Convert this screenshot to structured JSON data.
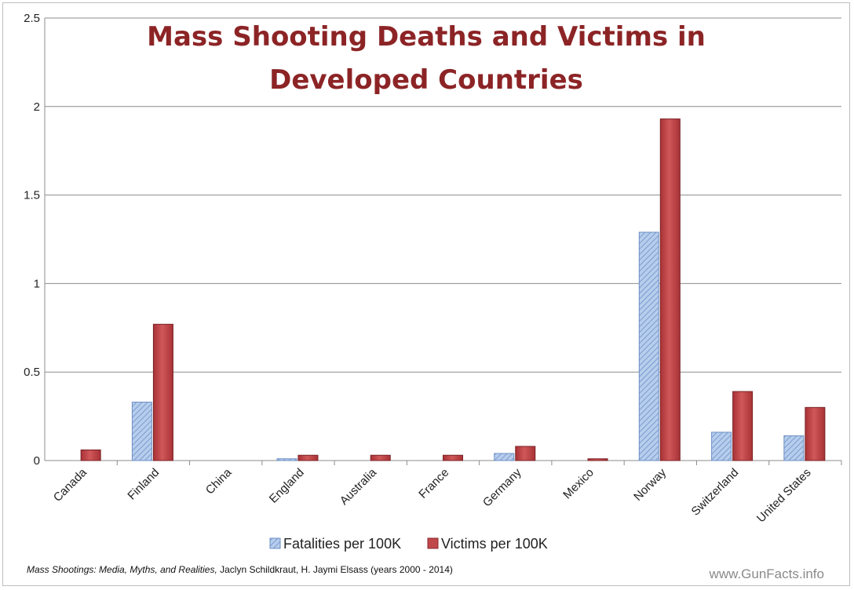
{
  "chart_data": {
    "type": "bar",
    "title_lines": [
      "Mass Shooting Deaths and Victims in",
      "Developed Countries"
    ],
    "categories": [
      "Canada",
      "Finland",
      "China",
      "England",
      "Australia",
      "France",
      "Germany",
      "Mexico",
      "Norway",
      "Switzerland",
      "United States"
    ],
    "series": [
      {
        "name": "Fatalities per 100K",
        "values": [
          0.0,
          0.33,
          0.0,
          0.01,
          0.0,
          0.0,
          0.04,
          0.0,
          1.29,
          0.16,
          0.14
        ]
      },
      {
        "name": "Victims per 100K",
        "values": [
          0.06,
          0.77,
          0.0,
          0.03,
          0.03,
          0.03,
          0.08,
          0.01,
          1.93,
          0.39,
          0.3
        ]
      }
    ],
    "yticks": [
      "0",
      "0.5",
      "1",
      "1.5",
      "2",
      "2.5"
    ],
    "ylim": [
      0,
      2.5
    ],
    "grid": true,
    "legend_position": "bottom",
    "colors": {
      "fatalities": "#a9c4e8",
      "fatalities_stripe": "#6d8fc4",
      "victims": "#c0474a",
      "title": "#8c2426"
    }
  },
  "source": {
    "italic_part": "Mass Shootings: Media, Myths, and Realities,",
    "rest": " Jaclyn Schildkraut, H. Jaymi Elsass (years 2000 - 2014)"
  },
  "watermark": "www.GunFacts.info"
}
